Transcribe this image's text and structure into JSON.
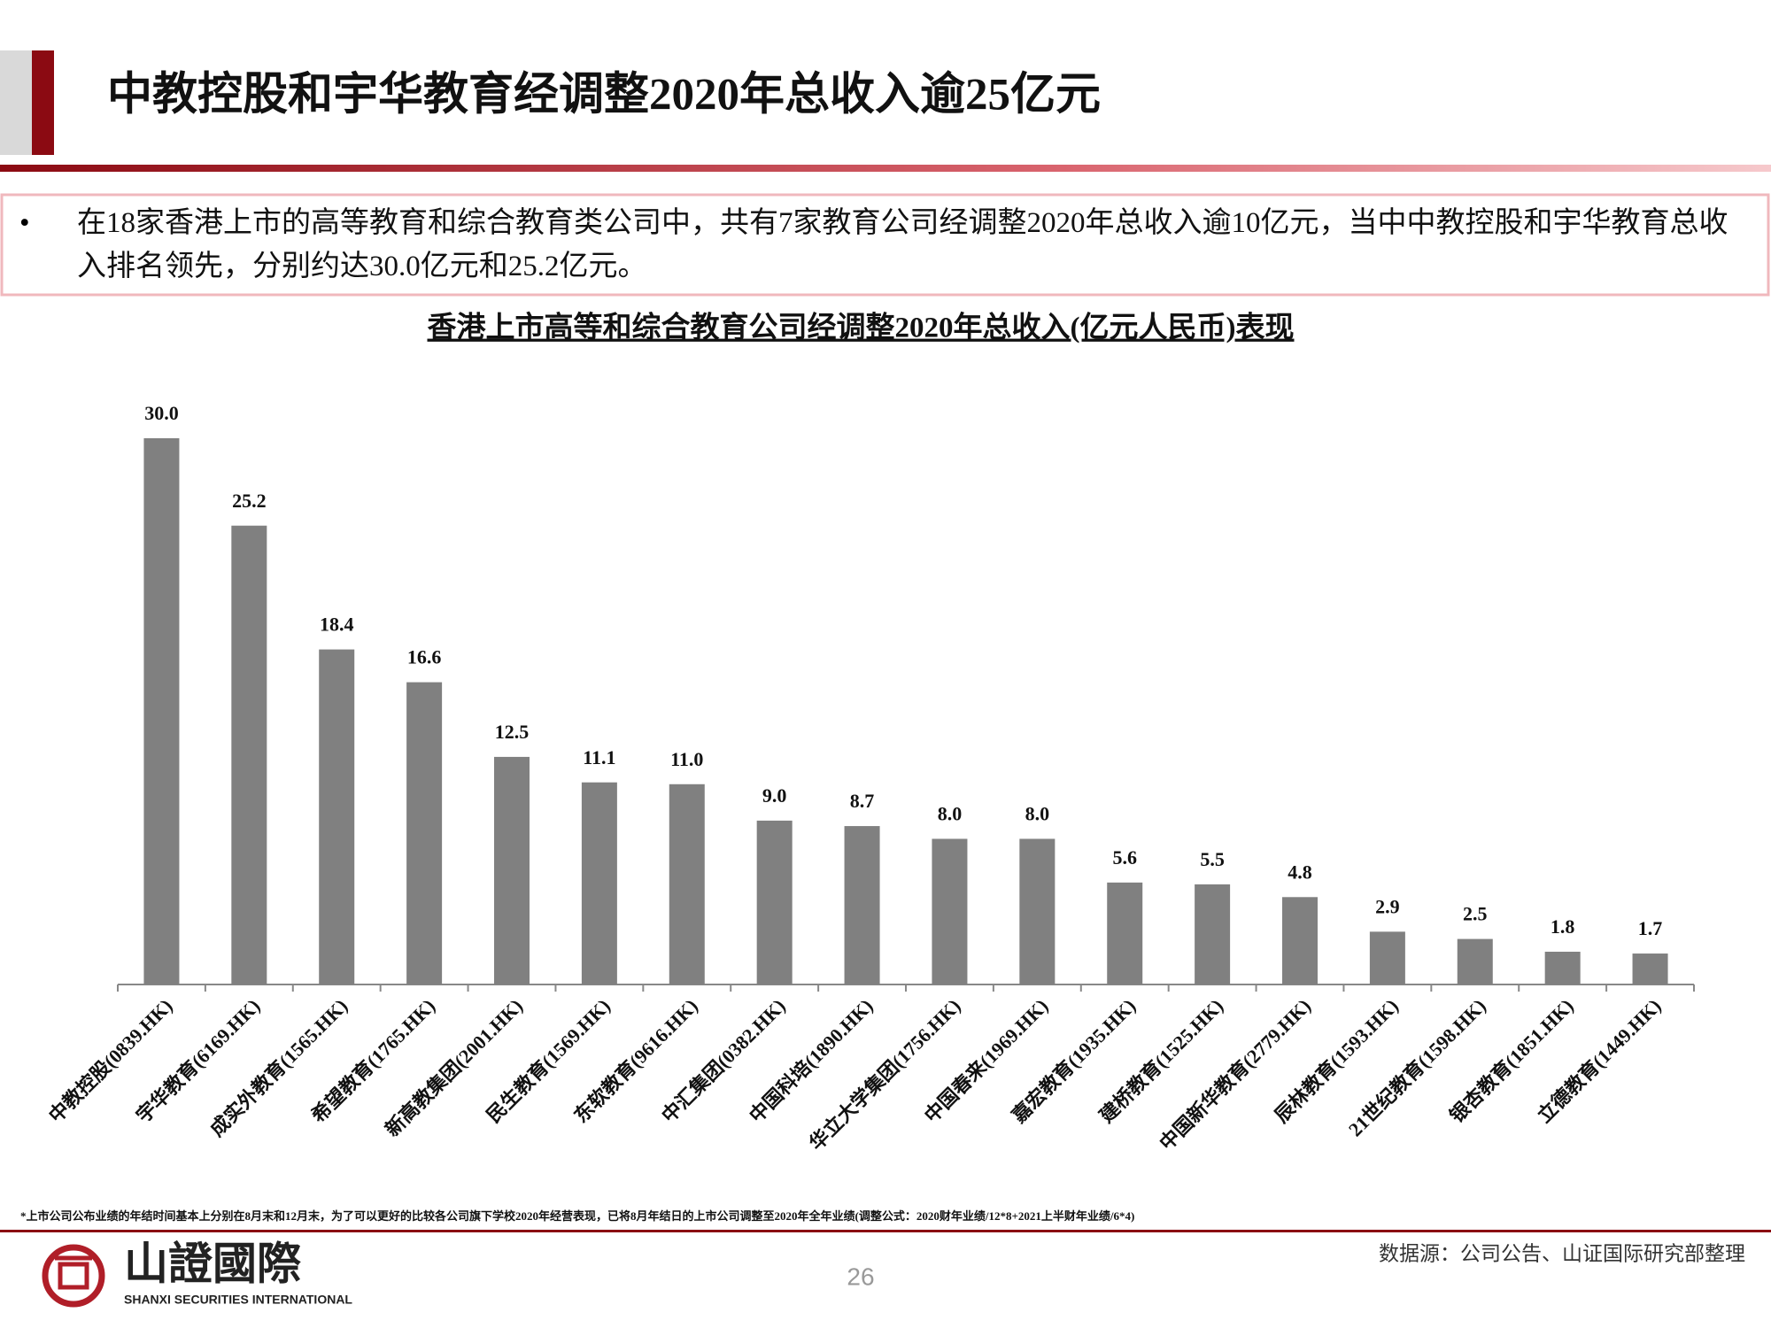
{
  "header": {
    "title": "中教控股和宇华教育经调整2020年总收入逾25亿元"
  },
  "summary": "在18家香港上市的高等教育和综合教育类公司中，共有7家教育公司经调整2020年总收入逾10亿元，当中中教控股和宇华教育总收入排名领先，分别约达30.0亿元和25.2亿元。",
  "chart_data": {
    "type": "bar",
    "title": "香港上市高等和综合教育公司经调整2020年总收入(亿元人民币)表现",
    "categories": [
      "中教控股(0839.HK)",
      "宇华教育(6169.HK)",
      "成实外教育(1565.HK)",
      "希望教育(1765.HK)",
      "新高教集团(2001.HK)",
      "民生教育(1569.HK)",
      "东软教育(9616.HK)",
      "中汇集团(0382.HK)",
      "中国科培(1890.HK)",
      "华立大学集团(1756.HK)",
      "中国春来(1969.HK)",
      "嘉宏教育(1935.HK)",
      "建桥教育(1525.HK)",
      "中国新华教育(2779.HK)",
      "辰林教育(1593.HK)",
      "21世纪教育(1598.HK)",
      "银杏教育(1851.HK)",
      "立德教育(1449.HK)"
    ],
    "values": [
      30,
      25.2,
      18.4,
      16.6,
      12.5,
      11.1,
      11,
      9,
      8.7,
      8,
      8,
      5.6,
      5.5,
      4.8,
      2.9,
      2.5,
      1.8,
      1.7
    ],
    "value_labels": [
      "30.0",
      "25.2",
      "18.4",
      "16.6",
      "12.5",
      "11.1",
      "11.0",
      "9.0",
      "8.7",
      "8.0",
      "8.0",
      "5.6",
      "5.5",
      "4.8",
      "2.9",
      "2.5",
      "1.8",
      "1.7"
    ],
    "color": "#808080"
  },
  "footnote": "*上市公司公布业绩的年结时间基本上分别在8月末和12月末，为了可以更好的比较各公司旗下学校2020年经营表现，已将8月年结日的上市公司调整至2020年全年业绩(调整公式：2020财年业绩/12*8+2021上半财年业绩/6*4)",
  "source": "数据源：公司公告、山证国际研究部整理",
  "page_number": "26",
  "logo": {
    "name": "山證國際",
    "english": "SHANXI SECURITIES INTERNATIONAL"
  }
}
